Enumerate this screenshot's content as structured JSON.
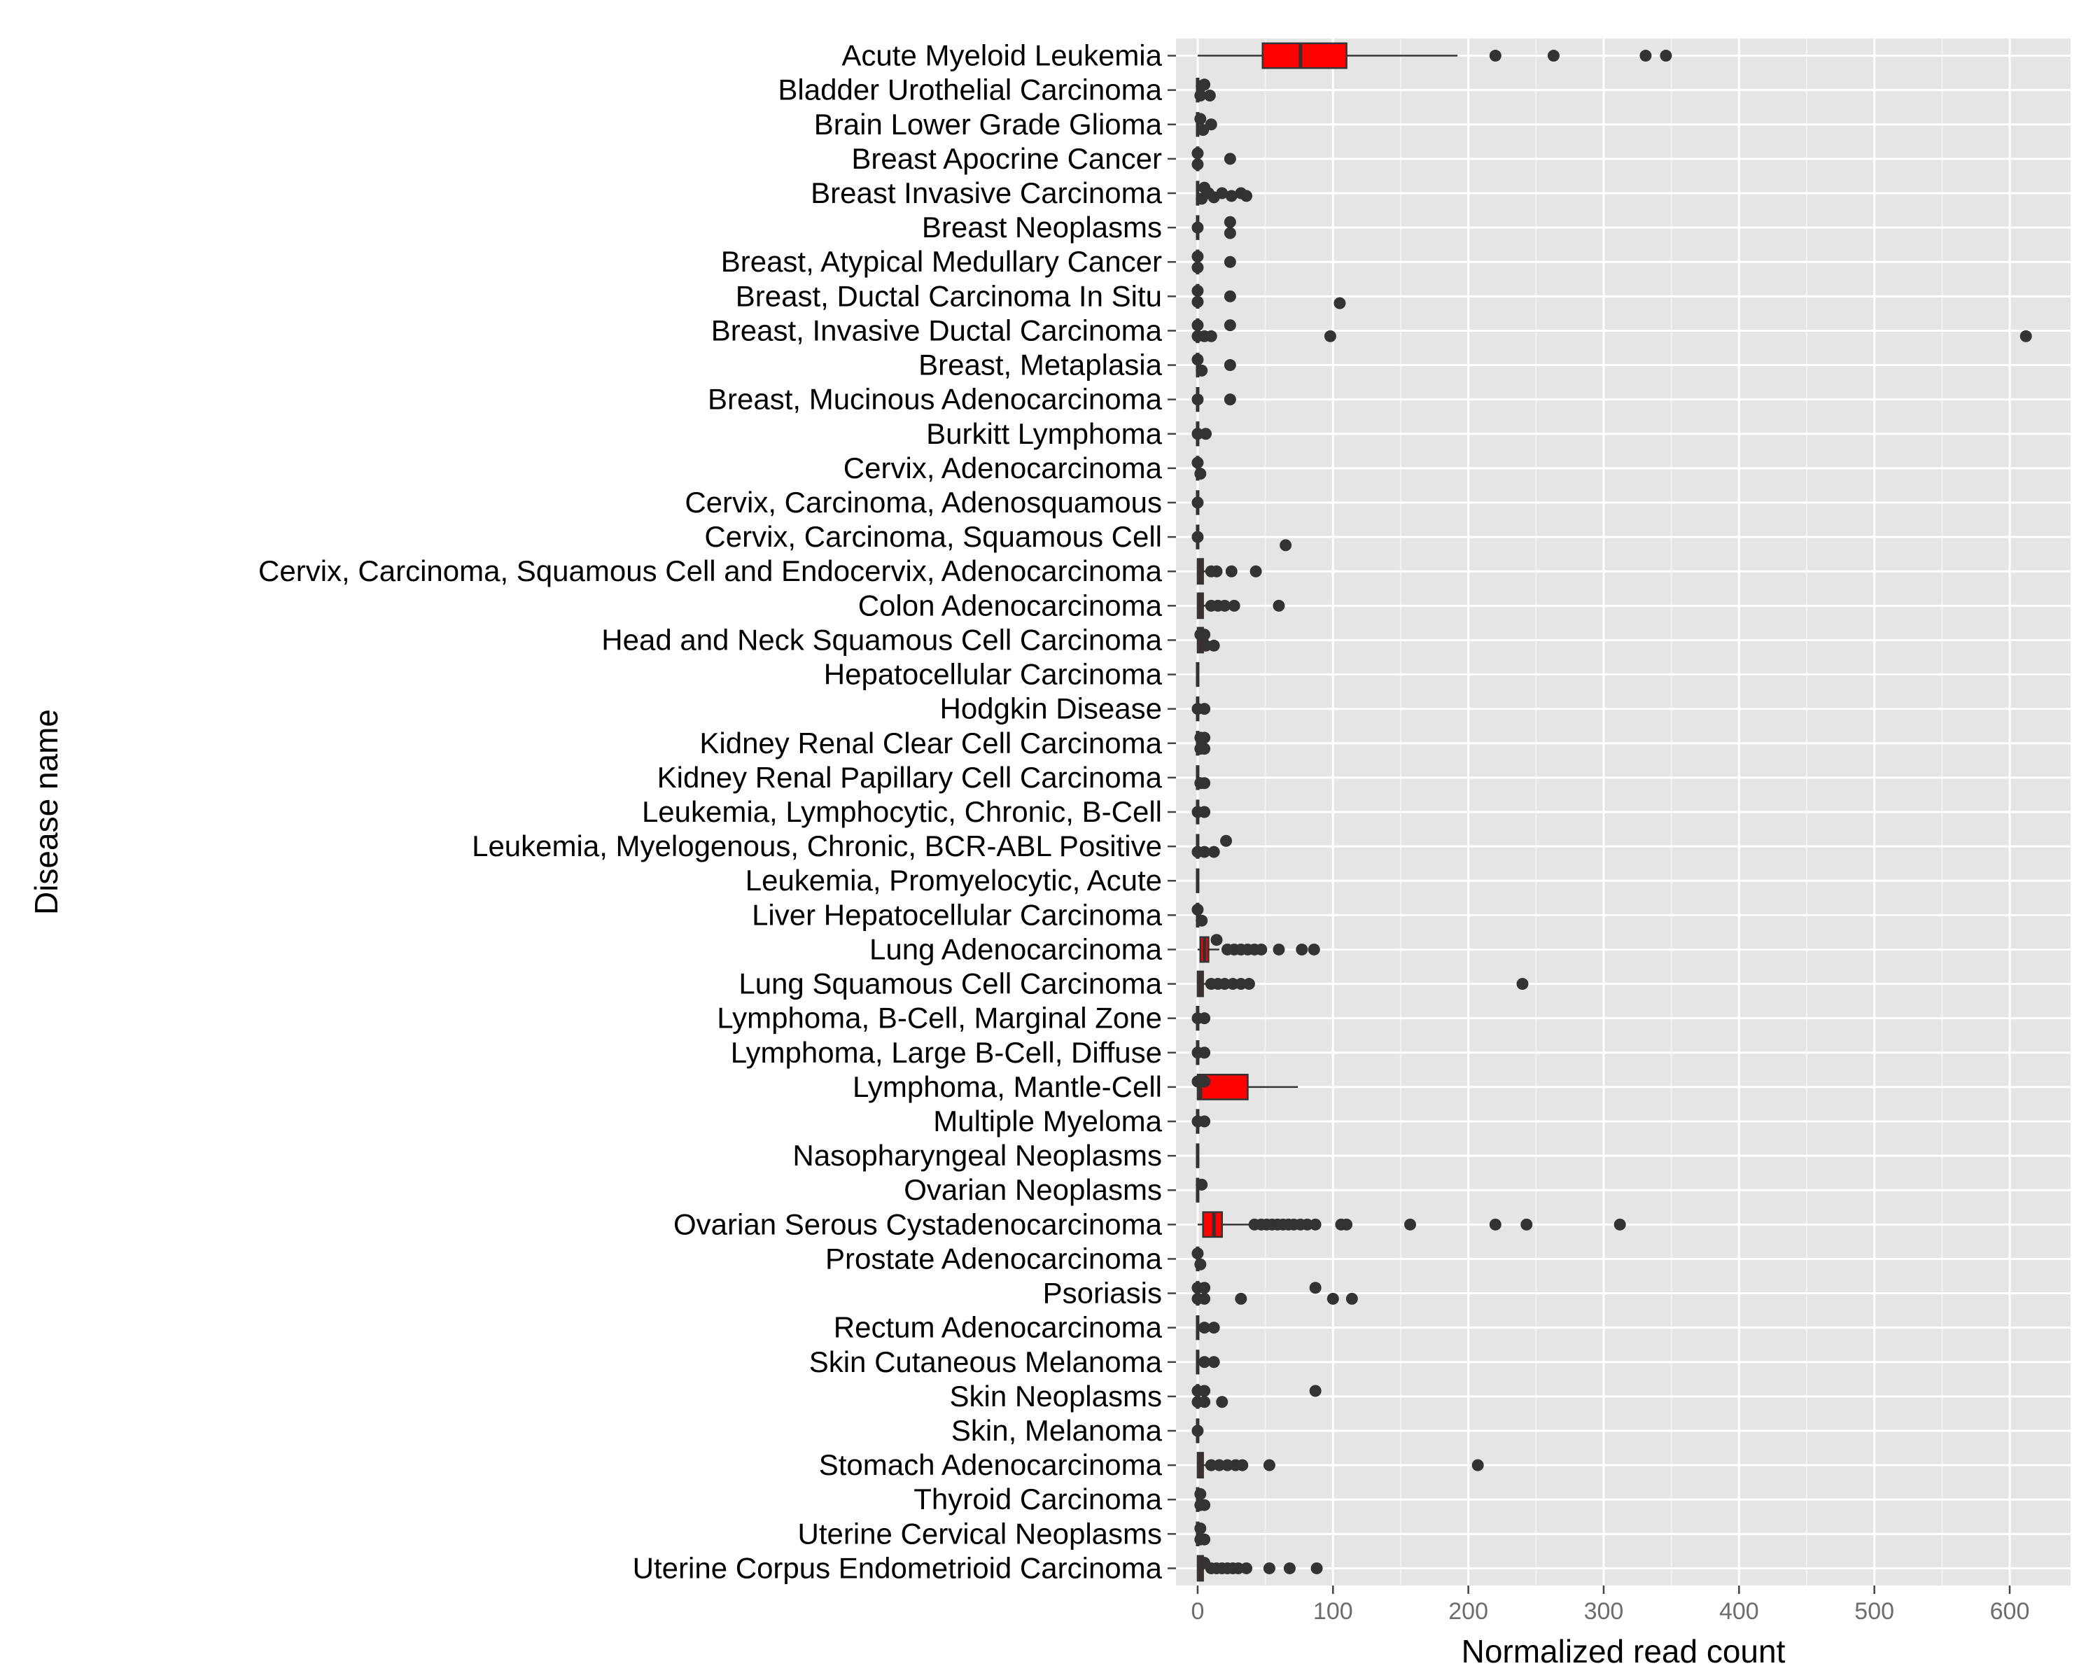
{
  "chart_data": {
    "type": "boxplot",
    "orientation": "horizontal",
    "xlabel": "Normalized read count",
    "ylabel": "Disease name",
    "xlim": [
      -16,
      645
    ],
    "xticks": [
      0,
      100,
      200,
      300,
      400,
      500,
      600
    ],
    "xtick_labels": [
      "0",
      "100",
      "200",
      "300",
      "400",
      "500",
      "600"
    ],
    "grid": true,
    "legend": "none",
    "colors": {
      "panel": "#e5e5e5",
      "grid": "#ffffff",
      "box_fill": "#ff0000",
      "box_line": "#333333",
      "point": "#333333"
    },
    "categories": [
      {
        "name": "Acute Myeloid Leukemia",
        "box": [
          0,
          48,
          76,
          110,
          192
        ],
        "outliers": [
          [
            220,
            0
          ],
          [
            263,
            0
          ],
          [
            331,
            0
          ],
          [
            346,
            0
          ]
        ]
      },
      {
        "name": "Bladder Urothelial Carcinoma",
        "box": [
          0,
          0,
          0,
          0,
          0
        ],
        "outliers": [
          [
            2,
            0.2
          ],
          [
            5,
            -0.2
          ],
          [
            9,
            0.2
          ],
          [
            3,
            -0.15
          ]
        ]
      },
      {
        "name": "Brain Lower Grade Glioma",
        "box": [
          0,
          0,
          0,
          0,
          0
        ],
        "outliers": [
          [
            4,
            0.2
          ],
          [
            10,
            0
          ],
          [
            2,
            -0.2
          ]
        ]
      },
      {
        "name": "Breast Apocrine Cancer",
        "box": [
          0,
          0,
          0,
          0,
          0
        ],
        "outliers": [
          [
            0,
            0.2
          ],
          [
            0,
            -0.2
          ],
          [
            24,
            0
          ]
        ]
      },
      {
        "name": "Breast Invasive Carcinoma",
        "box": [
          0,
          0,
          0,
          0,
          0
        ],
        "outliers": [
          [
            3,
            0.2
          ],
          [
            5,
            -0.2
          ],
          [
            8,
            0
          ],
          [
            12,
            0.15
          ],
          [
            18,
            0
          ],
          [
            25,
            0.1
          ],
          [
            32,
            0
          ],
          [
            36,
            0.1
          ]
        ]
      },
      {
        "name": "Breast Neoplasms",
        "box": [
          0,
          0,
          0,
          0,
          0
        ],
        "outliers": [
          [
            0,
            0
          ],
          [
            24,
            0.2
          ],
          [
            24,
            -0.2
          ]
        ]
      },
      {
        "name": "Breast, Atypical Medullary Cancer",
        "box": [
          0,
          0,
          0,
          0,
          0
        ],
        "outliers": [
          [
            0,
            0.2
          ],
          [
            0,
            -0.2
          ],
          [
            24,
            0
          ]
        ]
      },
      {
        "name": "Breast, Ductal Carcinoma In Situ",
        "box": [
          0,
          0,
          0,
          0,
          0
        ],
        "outliers": [
          [
            0,
            0.2
          ],
          [
            0,
            -0.2
          ],
          [
            24,
            0
          ],
          [
            105,
            0.25
          ]
        ]
      },
      {
        "name": "Breast, Invasive Ductal Carcinoma",
        "box": [
          0,
          0,
          0,
          0,
          0
        ],
        "outliers": [
          [
            0,
            0.2
          ],
          [
            5,
            0.2
          ],
          [
            10,
            0.2
          ],
          [
            0,
            -0.2
          ],
          [
            24,
            -0.2
          ],
          [
            98,
            0.2
          ],
          [
            612,
            0.2
          ]
        ]
      },
      {
        "name": "Breast, Metaplasia",
        "box": [
          0,
          0,
          0,
          0,
          0
        ],
        "outliers": [
          [
            3,
            0.2
          ],
          [
            0,
            -0.2
          ],
          [
            24,
            0
          ]
        ]
      },
      {
        "name": "Breast, Mucinous Adenocarcinoma",
        "box": [
          0,
          0,
          0,
          0,
          0
        ],
        "outliers": [
          [
            0,
            0
          ],
          [
            24,
            0
          ]
        ]
      },
      {
        "name": "Burkitt Lymphoma",
        "box": [
          0,
          0,
          0,
          0,
          0
        ],
        "outliers": [
          [
            0,
            0
          ],
          [
            6,
            0
          ]
        ]
      },
      {
        "name": "Cervix, Adenocarcinoma",
        "box": [
          0,
          0,
          0,
          0,
          0
        ],
        "outliers": [
          [
            2,
            0.2
          ],
          [
            0,
            -0.2
          ]
        ]
      },
      {
        "name": "Cervix, Carcinoma, Adenosquamous",
        "box": [
          0,
          0,
          0,
          0,
          0
        ],
        "outliers": [
          [
            0,
            0
          ]
        ]
      },
      {
        "name": "Cervix, Carcinoma, Squamous Cell",
        "box": [
          0,
          0,
          0,
          0,
          0
        ],
        "outliers": [
          [
            0,
            0
          ],
          [
            65,
            0.3
          ]
        ]
      },
      {
        "name": "Cervix, Carcinoma, Squamous Cell and Endocervix, Adenocarcinoma",
        "box": [
          0,
          0,
          2,
          4,
          8
        ],
        "outliers": [
          [
            10,
            0
          ],
          [
            14,
            0
          ],
          [
            25,
            0
          ],
          [
            43,
            0
          ]
        ]
      },
      {
        "name": "Colon Adenocarcinoma",
        "box": [
          0,
          0,
          2,
          4,
          8
        ],
        "outliers": [
          [
            10,
            0
          ],
          [
            15,
            0
          ],
          [
            20,
            0
          ],
          [
            27,
            0
          ],
          [
            60,
            0
          ]
        ]
      },
      {
        "name": "Head and Neck Squamous Cell Carcinoma",
        "box": [
          0,
          0,
          2,
          4,
          8
        ],
        "outliers": [
          [
            6,
            0.2
          ],
          [
            12,
            0.2
          ],
          [
            2,
            -0.2
          ],
          [
            5,
            -0.2
          ]
        ]
      },
      {
        "name": "Hepatocellular Carcinoma",
        "box": [
          0,
          0,
          0,
          0,
          0
        ],
        "outliers": []
      },
      {
        "name": "Hodgkin Disease",
        "box": [
          0,
          0,
          0,
          0,
          0
        ],
        "outliers": [
          [
            0,
            0
          ],
          [
            5,
            0
          ]
        ]
      },
      {
        "name": "Kidney Renal Clear Cell Carcinoma",
        "box": [
          0,
          0,
          0,
          0,
          0
        ],
        "outliers": [
          [
            2,
            0.2
          ],
          [
            5,
            0.2
          ],
          [
            2,
            -0.2
          ],
          [
            5,
            -0.2
          ]
        ]
      },
      {
        "name": "Kidney Renal Papillary Cell Carcinoma",
        "box": [
          0,
          0,
          0,
          0,
          0
        ],
        "outliers": [
          [
            2,
            0.2
          ],
          [
            5,
            0.2
          ]
        ]
      },
      {
        "name": "Leukemia, Lymphocytic, Chronic, B-Cell",
        "box": [
          0,
          0,
          0,
          0,
          0
        ],
        "outliers": [
          [
            0,
            0
          ],
          [
            5,
            0
          ]
        ]
      },
      {
        "name": "Leukemia, Myelogenous, Chronic, BCR-ABL Positive",
        "box": [
          0,
          0,
          0,
          0,
          0
        ],
        "outliers": [
          [
            0,
            0.2
          ],
          [
            5,
            0.2
          ],
          [
            12,
            0.2
          ],
          [
            21,
            -0.2
          ]
        ]
      },
      {
        "name": "Leukemia, Promyelocytic, Acute",
        "box": [
          0,
          0,
          0,
          0,
          0
        ],
        "outliers": []
      },
      {
        "name": "Liver Hepatocellular Carcinoma",
        "box": [
          0,
          0,
          0,
          0,
          0
        ],
        "outliers": [
          [
            3,
            0.2
          ],
          [
            0,
            -0.2
          ]
        ]
      },
      {
        "name": "Lung Adenocarcinoma",
        "box": [
          0,
          2,
          5,
          8,
          16
        ],
        "outliers": [
          [
            22,
            0
          ],
          [
            27,
            0
          ],
          [
            32,
            0
          ],
          [
            37,
            0
          ],
          [
            42,
            0
          ],
          [
            47,
            0
          ],
          [
            60,
            0
          ],
          [
            77,
            0
          ],
          [
            86,
            0
          ],
          [
            14,
            -0.35
          ]
        ]
      },
      {
        "name": "Lung Squamous Cell Carcinoma",
        "box": [
          0,
          0,
          2,
          4,
          8
        ],
        "outliers": [
          [
            10,
            0
          ],
          [
            15,
            0
          ],
          [
            20,
            0
          ],
          [
            26,
            0
          ],
          [
            32,
            0
          ],
          [
            38,
            0
          ],
          [
            240,
            0
          ]
        ]
      },
      {
        "name": "Lymphoma, B-Cell, Marginal Zone",
        "box": [
          0,
          0,
          0,
          0,
          0
        ],
        "outliers": [
          [
            0,
            0
          ],
          [
            5,
            0
          ]
        ]
      },
      {
        "name": "Lymphoma, Large B-Cell, Diffuse",
        "box": [
          0,
          0,
          0,
          0,
          0
        ],
        "outliers": [
          [
            0,
            0
          ],
          [
            5,
            0
          ]
        ]
      },
      {
        "name": "Lymphoma, Mantle-Cell",
        "box": [
          0,
          0,
          2,
          37,
          74
        ],
        "outliers": [
          [
            0,
            -0.2
          ],
          [
            5,
            -0.2
          ]
        ]
      },
      {
        "name": "Multiple Myeloma",
        "box": [
          0,
          0,
          0,
          0,
          0
        ],
        "outliers": [
          [
            0,
            0
          ],
          [
            5,
            0
          ]
        ]
      },
      {
        "name": "Nasopharyngeal Neoplasms",
        "box": [
          0,
          0,
          0,
          0,
          0
        ],
        "outliers": []
      },
      {
        "name": "Ovarian Neoplasms",
        "box": [
          0,
          0,
          0,
          0,
          0
        ],
        "outliers": [
          [
            3,
            -0.2
          ]
        ]
      },
      {
        "name": "Ovarian Serous Cystadenocarcinoma",
        "box": [
          0,
          4,
          12,
          18,
          38
        ],
        "outliers": [
          [
            42,
            0
          ],
          [
            47,
            0
          ],
          [
            51,
            0
          ],
          [
            55,
            0
          ],
          [
            59,
            0
          ],
          [
            63,
            0
          ],
          [
            67,
            0
          ],
          [
            71,
            0
          ],
          [
            76,
            0
          ],
          [
            81,
            0
          ],
          [
            87,
            0
          ],
          [
            106,
            0
          ],
          [
            110,
            0
          ],
          [
            157,
            0
          ],
          [
            220,
            0
          ],
          [
            243,
            0
          ],
          [
            312,
            0
          ]
        ]
      },
      {
        "name": "Prostate Adenocarcinoma",
        "box": [
          0,
          0,
          0,
          0,
          0
        ],
        "outliers": [
          [
            2,
            0.2
          ],
          [
            0,
            -0.2
          ]
        ]
      },
      {
        "name": "Psoriasis",
        "box": [
          0,
          0,
          0,
          0,
          0
        ],
        "outliers": [
          [
            0,
            0.2
          ],
          [
            5,
            0.2
          ],
          [
            32,
            0.2
          ],
          [
            100,
            0.2
          ],
          [
            114,
            0.2
          ],
          [
            0,
            -0.2
          ],
          [
            5,
            -0.2
          ],
          [
            87,
            -0.2
          ]
        ]
      },
      {
        "name": "Rectum Adenocarcinoma",
        "box": [
          0,
          0,
          0,
          0,
          0
        ],
        "outliers": [
          [
            5,
            0
          ],
          [
            12,
            0
          ]
        ]
      },
      {
        "name": "Skin Cutaneous Melanoma",
        "box": [
          0,
          0,
          0,
          0,
          0
        ],
        "outliers": [
          [
            5,
            0
          ],
          [
            12,
            0
          ]
        ]
      },
      {
        "name": "Skin Neoplasms",
        "box": [
          0,
          0,
          0,
          0,
          0
        ],
        "outliers": [
          [
            0,
            0.2
          ],
          [
            5,
            0.2
          ],
          [
            18,
            0.2
          ],
          [
            0,
            -0.2
          ],
          [
            5,
            -0.2
          ],
          [
            87,
            -0.2
          ]
        ]
      },
      {
        "name": "Skin, Melanoma",
        "box": [
          0,
          0,
          0,
          0,
          0
        ],
        "outliers": [
          [
            0,
            0
          ]
        ]
      },
      {
        "name": "Stomach Adenocarcinoma",
        "box": [
          0,
          0,
          2,
          4,
          8
        ],
        "outliers": [
          [
            10,
            0
          ],
          [
            16,
            0
          ],
          [
            22,
            0
          ],
          [
            28,
            0
          ],
          [
            33,
            0
          ],
          [
            53,
            0
          ],
          [
            207,
            0
          ]
        ]
      },
      {
        "name": "Thyroid Carcinoma",
        "box": [
          0,
          0,
          0,
          0,
          0
        ],
        "outliers": [
          [
            2,
            0.2
          ],
          [
            5,
            0.2
          ],
          [
            2,
            -0.2
          ]
        ]
      },
      {
        "name": "Uterine Cervical Neoplasms",
        "box": [
          0,
          0,
          0,
          0,
          0
        ],
        "outliers": [
          [
            2,
            0.2
          ],
          [
            5,
            0.2
          ],
          [
            2,
            -0.2
          ]
        ]
      },
      {
        "name": "Uterine Corpus Endometrioid Carcinoma",
        "box": [
          0,
          0,
          2,
          4,
          8
        ],
        "outliers": [
          [
            10,
            0
          ],
          [
            14,
            0
          ],
          [
            18,
            0
          ],
          [
            22,
            0
          ],
          [
            26,
            0
          ],
          [
            30,
            0
          ],
          [
            36,
            0
          ],
          [
            53,
            0
          ],
          [
            68,
            0
          ],
          [
            88,
            0
          ],
          [
            5,
            -0.2
          ]
        ]
      }
    ]
  }
}
